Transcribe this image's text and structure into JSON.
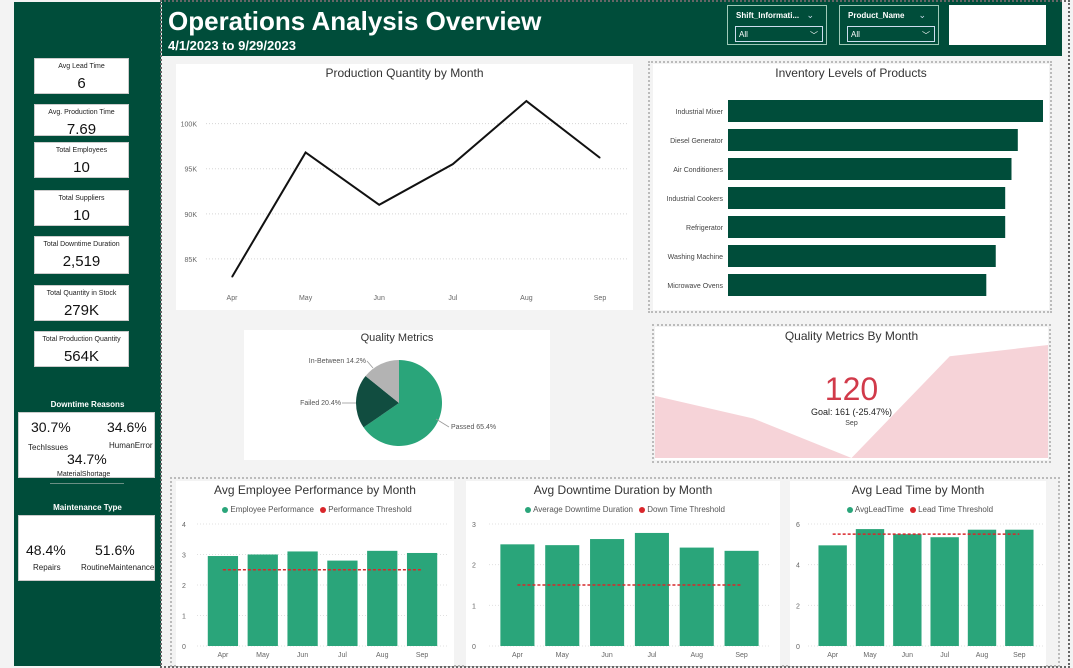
{
  "header": {
    "title": "Operations Analysis Overview",
    "date_range": "4/1/2023 to 9/29/2023",
    "slicers": [
      {
        "label": "Shift_Informati...",
        "value": "All"
      },
      {
        "label": "Product_Name",
        "value": "All"
      }
    ]
  },
  "kpis": [
    {
      "label": "Avg Lead Time",
      "value": "6"
    },
    {
      "label": "Avg. Production Time",
      "value": "7.69"
    },
    {
      "label": "Total Employees",
      "value": "10"
    },
    {
      "label": "Total Suppliers",
      "value": "10"
    },
    {
      "label": "Total Downtime Duration",
      "value": "2,519"
    },
    {
      "label": "Total Quantity in Stock",
      "value": "279K"
    },
    {
      "label": "Total Production Quantity",
      "value": "564K"
    }
  ],
  "downtime_reasons": {
    "title": "Downtime Reasons",
    "items": [
      {
        "pct": "30.7%",
        "label": "TechIssues"
      },
      {
        "pct": "34.6%",
        "label": "HumanError"
      },
      {
        "pct": "34.7%",
        "label": "MaterialShortage"
      }
    ]
  },
  "maintenance_type": {
    "title": "Maintenance Type",
    "items": [
      {
        "pct": "48.4%",
        "label": "Repairs"
      },
      {
        "pct": "51.6%",
        "label": "RoutineMaintenance"
      }
    ]
  },
  "colors": {
    "dark_green": "#004d3a",
    "bar_green": "#2aa57a",
    "threshold_red": "#d9262b",
    "kpi_red": "#d13a4a"
  },
  "chart_data": [
    {
      "id": "production",
      "type": "line",
      "title": "Production Quantity by Month",
      "categories": [
        "Apr",
        "May",
        "Jun",
        "Jul",
        "Aug",
        "Sep"
      ],
      "values": [
        83000,
        96800,
        91000,
        95500,
        102500,
        96200
      ],
      "yticks": [
        "85K",
        "90K",
        "95K",
        "100K"
      ],
      "ytick_values": [
        85000,
        90000,
        95000,
        100000
      ],
      "ylim": [
        82000,
        103500
      ]
    },
    {
      "id": "inventory",
      "type": "bar",
      "orientation": "horizontal",
      "title": "Inventory Levels of Products",
      "categories": [
        "Industrial Mixer",
        "Diesel Generator",
        "Air Conditioners",
        "Industrial Cookers",
        "Refrigerator",
        "Washing Machine",
        "Microwave Ovens"
      ],
      "values": [
        1.0,
        0.92,
        0.9,
        0.88,
        0.88,
        0.85,
        0.82
      ]
    },
    {
      "id": "quality",
      "type": "pie",
      "title": "Quality Metrics",
      "slices": [
        {
          "label": "Passed 65.4%",
          "value": 65.4,
          "color": "#2aa57a"
        },
        {
          "label": "Failed 20.4%",
          "value": 20.4,
          "color": "#114d40"
        },
        {
          "label": "In-Between 14.2%",
          "value": 14.2,
          "color": "#b3b3b3"
        }
      ]
    },
    {
      "id": "quality_month",
      "type": "area",
      "title": "Quality Metrics By Month",
      "values": [
        0.55,
        0.35,
        0.0,
        0.9,
        1.0
      ],
      "kpi_value": "120",
      "goal": "Goal: 161 (-25.47%)",
      "period": "Sep"
    },
    {
      "id": "employee",
      "type": "bar",
      "title": "Avg Employee Performance by Month",
      "legend": [
        "Employee Performance",
        "Performance Threshold"
      ],
      "categories": [
        "Apr",
        "May",
        "Jun",
        "Jul",
        "Aug",
        "Sep"
      ],
      "values": [
        2.95,
        3.0,
        3.1,
        2.8,
        3.12,
        3.05
      ],
      "threshold": 2.5,
      "ylim": [
        0,
        4
      ],
      "yticks": [
        "0",
        "1",
        "2",
        "3",
        "4"
      ]
    },
    {
      "id": "downtime",
      "type": "bar",
      "title": "Avg Downtime Duration by Month",
      "legend": [
        "Average Downtime Duration",
        "Down Time Threshold"
      ],
      "categories": [
        "Apr",
        "May",
        "Jun",
        "Jul",
        "Aug",
        "Sep"
      ],
      "values": [
        2.5,
        2.48,
        2.63,
        2.78,
        2.42,
        2.34
      ],
      "threshold": 1.5,
      "ylim": [
        0,
        3
      ],
      "yticks": [
        "0",
        "1",
        "2",
        "3"
      ]
    },
    {
      "id": "leadtime",
      "type": "bar",
      "title": "Avg Lead Time by Month",
      "legend": [
        "AvgLeadTime",
        "Lead Time Threshold"
      ],
      "categories": [
        "Apr",
        "May",
        "Jun",
        "Jul",
        "Aug",
        "Sep"
      ],
      "values": [
        4.95,
        5.75,
        5.5,
        5.35,
        5.72,
        5.72
      ],
      "threshold": 5.5,
      "ylim": [
        0,
        6
      ],
      "yticks": [
        "0",
        "2",
        "4",
        "6"
      ]
    }
  ]
}
